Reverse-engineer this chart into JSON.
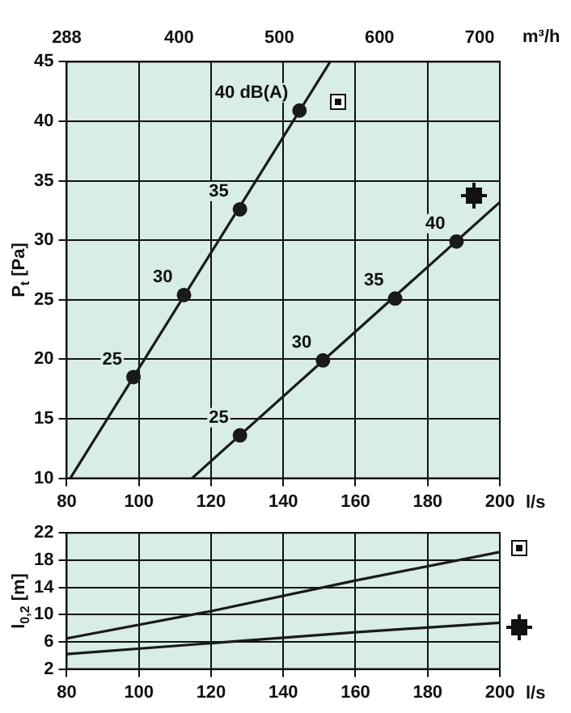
{
  "chart_data": [
    {
      "type": "line",
      "xlabel": "l/s",
      "x2label": "m³/h",
      "ylabel": "P$_{t}$ [Pa]",
      "xlim": [
        80,
        200
      ],
      "xticks": [
        80,
        100,
        120,
        140,
        160,
        180,
        200
      ],
      "x2lim": [
        288,
        720
      ],
      "x2ticks": [
        288,
        400,
        500,
        600,
        700
      ],
      "ylim": [
        10,
        45
      ],
      "yticks": [
        10,
        15,
        20,
        25,
        30,
        35,
        40,
        45
      ],
      "grid": true,
      "series": [
        {
          "type": "line",
          "color": "#1a1a1a",
          "marker": "none",
          "x": [
            81,
            153
          ],
          "values": [
            10,
            45
          ]
        },
        {
          "type": "scatter",
          "color": "#1a1a1a",
          "marker": "circle",
          "x": [
            98.5,
            112.5,
            128,
            144.5
          ],
          "values": [
            18.5,
            25.4,
            32.6,
            40.9
          ]
        },
        {
          "type": "line",
          "color": "#1a1a1a",
          "marker": "none",
          "x": [
            114.7,
            200
          ],
          "values": [
            10,
            33.2
          ]
        },
        {
          "type": "scatter",
          "color": "#1a1a1a",
          "marker": "circle",
          "x": [
            128,
            151,
            171,
            188
          ],
          "values": [
            13.6,
            19.9,
            25.1,
            29.9
          ]
        }
      ],
      "annotations": [
        {
          "text": "25",
          "x": 98.5,
          "y": 18.5
        },
        {
          "text": "30",
          "x": 112.5,
          "y": 25.4
        },
        {
          "text": "35",
          "x": 128,
          "y": 32.6
        },
        {
          "text": "40 dB(A)",
          "x": 144.5,
          "y": 40.9
        },
        {
          "text": "25",
          "x": 128,
          "y": 13.6
        },
        {
          "text": "30",
          "x": 151,
          "y": 19.9
        },
        {
          "text": "35",
          "x": 171,
          "y": 25.1
        },
        {
          "text": "40",
          "x": 188,
          "y": 29.9
        }
      ]
    },
    {
      "type": "line",
      "xlabel": "l/s",
      "ylabel": "l$_{0,2}$ [m]",
      "xlim": [
        80,
        200
      ],
      "xticks": [
        80,
        100,
        120,
        140,
        160,
        180,
        200
      ],
      "ylim": [
        2,
        22
      ],
      "yticks": [
        2,
        6,
        10,
        14,
        18,
        22
      ],
      "grid": true,
      "series": [
        {
          "type": "line",
          "color": "#1a1a1a",
          "marker": "none",
          "x": [
            80,
            120,
            160,
            200
          ],
          "values": [
            6.5,
            10.5,
            15,
            19.2
          ]
        },
        {
          "type": "line",
          "color": "#1a1a1a",
          "marker": "none",
          "x": [
            80,
            120,
            160,
            200
          ],
          "values": [
            4.2,
            5.8,
            7.4,
            8.8
          ]
        }
      ]
    }
  ]
}
